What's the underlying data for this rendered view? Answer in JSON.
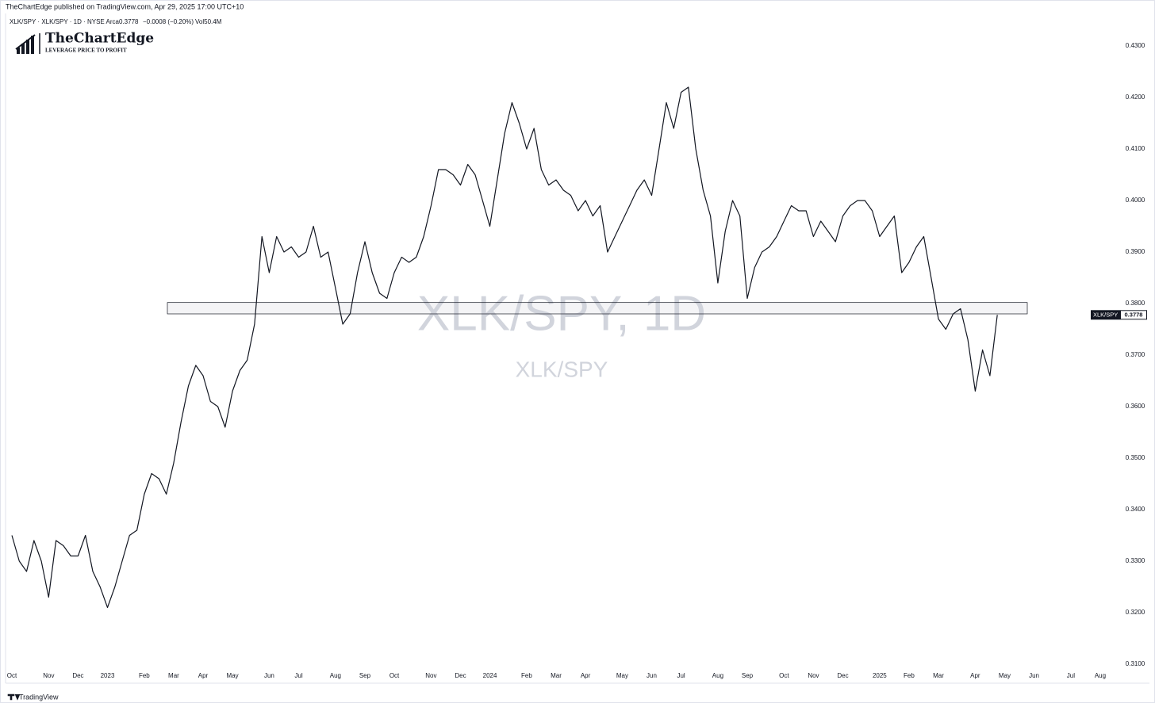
{
  "header": {
    "publisher": "TheChartEdge published on TradingView.com, Apr 29, 2025 17:00 UTC+10",
    "symbol_line": "XLK/SPY · XLK/SPY · 1D · NYSE Arca",
    "change": "−0.0008 (−0.20%)",
    "volume": "Vol50.4M"
  },
  "logo": {
    "name": "TheChartEdge",
    "tagline": "LEVERAGE PRICE TO PROFIT"
  },
  "footer": "TradingView",
  "chart_data": {
    "type": "line",
    "watermark": "XLK/SPY, 1D",
    "watermark_subtitle": "XLK/SPY",
    "categories": [
      "Oct",
      null,
      null,
      null,
      null,
      "Nov",
      null,
      null,
      null,
      "Dec",
      null,
      null,
      null,
      "2023",
      null,
      null,
      null,
      null,
      "Feb",
      null,
      null,
      null,
      "Mar",
      null,
      null,
      null,
      "Apr",
      null,
      null,
      null,
      "May",
      null,
      null,
      null,
      null,
      "Jun",
      null,
      null,
      null,
      "Jul",
      null,
      null,
      null,
      null,
      "Aug",
      null,
      null,
      null,
      "Sep",
      null,
      null,
      null,
      "Oct",
      null,
      null,
      null,
      null,
      "Nov",
      null,
      null,
      null,
      "Dec",
      null,
      null,
      null,
      "2024",
      null,
      null,
      null,
      null,
      "Feb",
      null,
      null,
      null,
      "Mar",
      null,
      null,
      null,
      "Apr",
      null,
      null,
      null,
      null,
      "May",
      null,
      null,
      null,
      "Jun",
      null,
      null,
      null,
      "Jul",
      null,
      null,
      null,
      null,
      "Aug",
      null,
      null,
      null,
      "Sep",
      null,
      null,
      null,
      null,
      "Oct",
      null,
      null,
      null,
      "Nov",
      null,
      null,
      null,
      "Dec",
      null,
      null,
      null,
      null,
      "2025",
      null,
      null,
      null,
      "Feb",
      null,
      null,
      null,
      "Mar",
      null,
      null,
      null,
      null,
      "Apr",
      null,
      null,
      null,
      "May",
      null,
      null,
      null,
      "Jun",
      null,
      null,
      null,
      null,
      "Jul",
      null,
      null,
      null,
      "Aug",
      null
    ],
    "series": [
      {
        "name": "XLK/SPY",
        "color": "#131722",
        "values": [
          0.335,
          0.33,
          0.328,
          0.334,
          0.33,
          0.323,
          0.334,
          0.333,
          0.331,
          0.331,
          0.335,
          0.328,
          0.325,
          0.321,
          0.325,
          0.33,
          0.335,
          0.336,
          0.343,
          0.347,
          0.346,
          0.343,
          0.349,
          0.357,
          0.364,
          0.368,
          0.366,
          0.361,
          0.36,
          0.356,
          0.363,
          0.367,
          0.369,
          0.376,
          0.393,
          0.386,
          0.393,
          0.39,
          0.391,
          0.389,
          0.39,
          0.395,
          0.389,
          0.39,
          0.383,
          0.376,
          0.378,
          0.386,
          0.392,
          0.386,
          0.382,
          0.381,
          0.386,
          0.389,
          0.388,
          0.389,
          0.393,
          0.399,
          0.406,
          0.406,
          0.405,
          0.403,
          0.407,
          0.405,
          0.4,
          0.395,
          0.404,
          0.413,
          0.419,
          0.415,
          0.41,
          0.414,
          0.406,
          0.403,
          0.404,
          0.402,
          0.401,
          0.398,
          0.4,
          0.397,
          0.399,
          0.39,
          0.393,
          0.396,
          0.399,
          0.402,
          0.404,
          0.401,
          0.41,
          0.419,
          0.414,
          0.421,
          0.422,
          0.41,
          0.402,
          0.397,
          0.384,
          0.394,
          0.4,
          0.397,
          0.381,
          0.387,
          0.39,
          0.391,
          0.393,
          0.396,
          0.399,
          0.398,
          0.398,
          0.393,
          0.396,
          0.394,
          0.392,
          0.397,
          0.399,
          0.4,
          0.4,
          0.398,
          0.393,
          0.395,
          0.397,
          0.386,
          0.388,
          0.391,
          0.393,
          0.385,
          0.377,
          0.375,
          0.378,
          0.379,
          0.373,
          0.363,
          0.371,
          0.366,
          0.3778,
          null,
          null,
          null,
          null,
          null,
          null,
          null,
          null,
          null,
          null,
          null,
          null,
          null,
          null,
          null
        ]
      }
    ],
    "zone": [
      0.378,
      0.3802
    ],
    "ylim": [
      0.3063,
      0.4377
    ],
    "yticks": [
      {
        "value": 0.43,
        "label": "0.4300"
      },
      {
        "value": 0.42,
        "label": "0.4200"
      },
      {
        "value": 0.41,
        "label": "0.4100"
      },
      {
        "value": 0.4,
        "label": "0.4000"
      },
      {
        "value": 0.39,
        "label": "0.3900"
      },
      {
        "value": 0.38,
        "label": "0.3800"
      },
      {
        "value": 0.37,
        "label": "0.3700"
      },
      {
        "value": 0.36,
        "label": "0.3600"
      },
      {
        "value": 0.35,
        "label": "0.3500"
      },
      {
        "value": 0.34,
        "label": "0.3400"
      },
      {
        "value": 0.33,
        "label": "0.3300"
      },
      {
        "value": 0.32,
        "label": "0.3200"
      },
      {
        "value": 0.31,
        "label": "0.3100"
      }
    ]
  }
}
